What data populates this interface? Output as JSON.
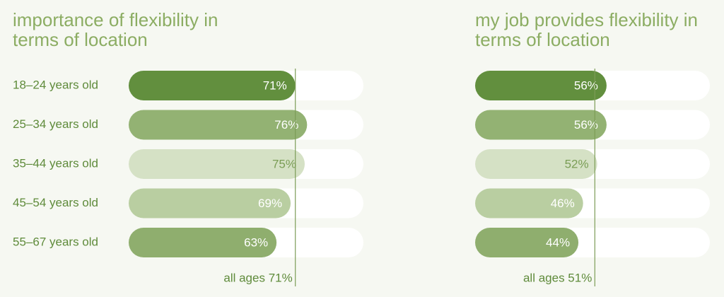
{
  "chart_data": [
    {
      "type": "bar",
      "orientation": "horizontal",
      "title": "importance of flexibility in terms of location",
      "categories": [
        "18–24 years old",
        "25–34 years old",
        "35–44 years old",
        "45–54 years old",
        "55–67 years old"
      ],
      "values": [
        71,
        76,
        75,
        69,
        63
      ],
      "value_labels": [
        "71%",
        "76%",
        "75%",
        "69%",
        "63%"
      ],
      "colors": [
        "#628f3e",
        "#93b273",
        "#d5e1c5",
        "#b9cea1",
        "#8fae6e"
      ],
      "label_colors": [
        "#ffffff",
        "#ffffff",
        "#7a9d55",
        "#ffffff",
        "#ffffff"
      ],
      "xlim": [
        0,
        100
      ],
      "reference": {
        "value": 71,
        "label": "all ages 71%"
      }
    },
    {
      "type": "bar",
      "orientation": "horizontal",
      "title": "my job provides flexibility in terms of location",
      "values": [
        56,
        56,
        52,
        46,
        44
      ],
      "value_labels": [
        "56%",
        "56%",
        "52%",
        "46%",
        "44%"
      ],
      "colors": [
        "#628f3e",
        "#93b273",
        "#d5e1c5",
        "#b9cea1",
        "#8fae6e"
      ],
      "label_colors": [
        "#ffffff",
        "#ffffff",
        "#7a9d55",
        "#ffffff",
        "#ffffff"
      ],
      "xlim": [
        0,
        100
      ],
      "reference": {
        "value": 51,
        "label": "all ages 51%"
      }
    }
  ]
}
